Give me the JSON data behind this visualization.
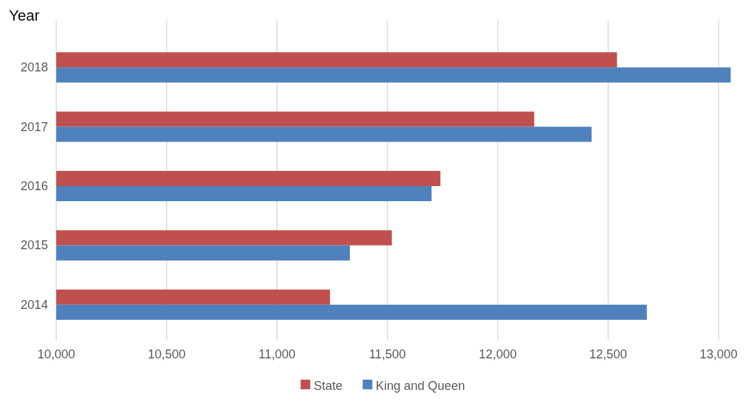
{
  "chart_data": {
    "type": "bar",
    "orientation": "horizontal",
    "ylabel": "Year",
    "categories": [
      "2018",
      "2017",
      "2016",
      "2015",
      "2014"
    ],
    "series": [
      {
        "name": "State",
        "color": "#c0504d",
        "values": [
          12540,
          12165,
          11740,
          11520,
          11240
        ]
      },
      {
        "name": "King and Queen",
        "color": "#4f81bd",
        "values": [
          13055,
          12425,
          11700,
          11330,
          12675
        ]
      }
    ],
    "xlim": [
      10000,
      13070
    ],
    "xticks": [
      {
        "value": 10000,
        "label": "10,000"
      },
      {
        "value": 10500,
        "label": "10,500"
      },
      {
        "value": 11000,
        "label": "11,000"
      },
      {
        "value": 11500,
        "label": "11,500"
      },
      {
        "value": 12000,
        "label": "12,000"
      },
      {
        "value": 12500,
        "label": "12,500"
      },
      {
        "value": 13000,
        "label": "13,000"
      }
    ],
    "grid": "x",
    "legend": "bottom"
  }
}
